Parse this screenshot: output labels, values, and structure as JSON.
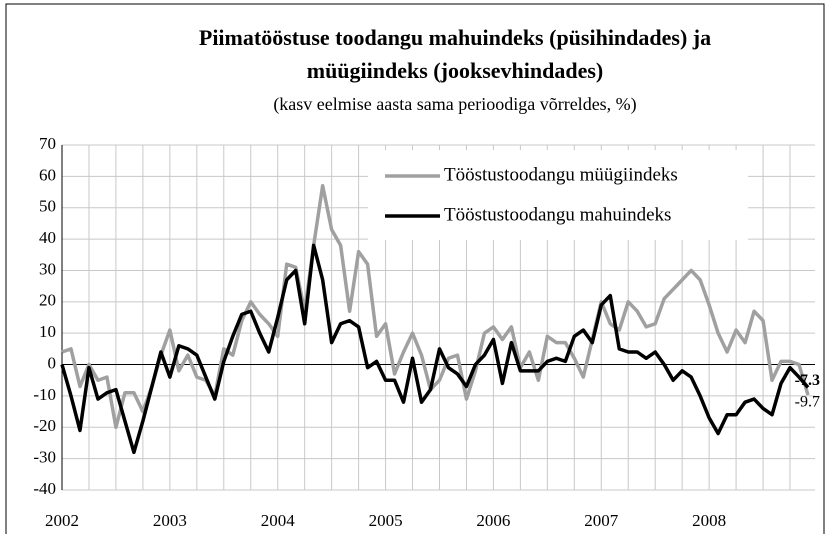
{
  "chart_data": {
    "type": "line",
    "title": [
      "Piimatööstuse toodangu mahuindeks (püsihindades) ja",
      "müügiindeks (jooksevhindades)"
    ],
    "subtitle": "(kasv eelmise aasta sama perioodiga võrreldes, %)",
    "categories": [
      "2002",
      null,
      null,
      null,
      null,
      null,
      null,
      null,
      null,
      null,
      null,
      null,
      "2003",
      null,
      null,
      null,
      null,
      null,
      null,
      null,
      null,
      null,
      null,
      null,
      "2004",
      null,
      null,
      null,
      null,
      null,
      null,
      null,
      null,
      null,
      null,
      null,
      "2005",
      null,
      null,
      null,
      null,
      null,
      null,
      null,
      null,
      null,
      null,
      null,
      "2006",
      null,
      null,
      null,
      null,
      null,
      null,
      null,
      null,
      null,
      null,
      null,
      "2007",
      null,
      null,
      null,
      null,
      null,
      null,
      null,
      null,
      null,
      null,
      null,
      "2008",
      null,
      null,
      null,
      null,
      null,
      null,
      null,
      null,
      null,
      null,
      null
    ],
    "series": [
      {
        "name": "Tööstustoodangu müügiindeks",
        "color": "#a0a0a0",
        "values": [
          4,
          5,
          -7,
          0,
          -5,
          -4,
          -20,
          -9,
          -9,
          -15,
          -7,
          3,
          11,
          -2,
          3,
          -4,
          -5,
          -10,
          5,
          3,
          14,
          20,
          16,
          13,
          9,
          32,
          31,
          17,
          38,
          57,
          43,
          38,
          17,
          36,
          32,
          9,
          13,
          -3,
          4,
          10,
          3,
          -8,
          -5,
          2,
          3,
          -11,
          -2,
          10,
          12,
          8,
          12,
          -1,
          4,
          -5,
          9,
          7,
          7,
          2,
          -4,
          8,
          20,
          13,
          11,
          20,
          17,
          12,
          13,
          21,
          24,
          27,
          30,
          27,
          19,
          10,
          4,
          11,
          7,
          17,
          14,
          -5,
          1,
          1,
          0,
          -9.7
        ]
      },
      {
        "name": "Tööstustoodangu mahuindeks",
        "color": "#000000",
        "values": [
          0,
          -10,
          -21,
          -1,
          -11,
          -9,
          -8,
          -18,
          -28,
          -18,
          -7,
          4,
          -4,
          6,
          5,
          3,
          -4,
          -11,
          1,
          9,
          16,
          17,
          10,
          4,
          15,
          27,
          30,
          13,
          38,
          27,
          7,
          13,
          14,
          12,
          -1,
          1,
          -5,
          -5,
          -12,
          2,
          -12,
          -8,
          5,
          -1,
          -3,
          -7,
          0,
          3,
          8,
          -6,
          7,
          -2,
          -2,
          -2,
          1,
          2,
          1,
          9,
          11,
          7,
          19,
          22,
          5,
          4,
          4,
          2,
          4,
          0,
          -5,
          -2,
          -4,
          -10,
          -17,
          -22,
          -16,
          -16,
          -12,
          -11,
          -14,
          -16,
          -6,
          -1,
          -4,
          -7.3
        ]
      }
    ],
    "ylim": [
      -40,
      70
    ],
    "yticks": [
      -40,
      -30,
      -20,
      -10,
      0,
      10,
      20,
      30,
      40,
      50,
      60,
      70
    ],
    "grid": true,
    "legend": "top-right"
  }
}
